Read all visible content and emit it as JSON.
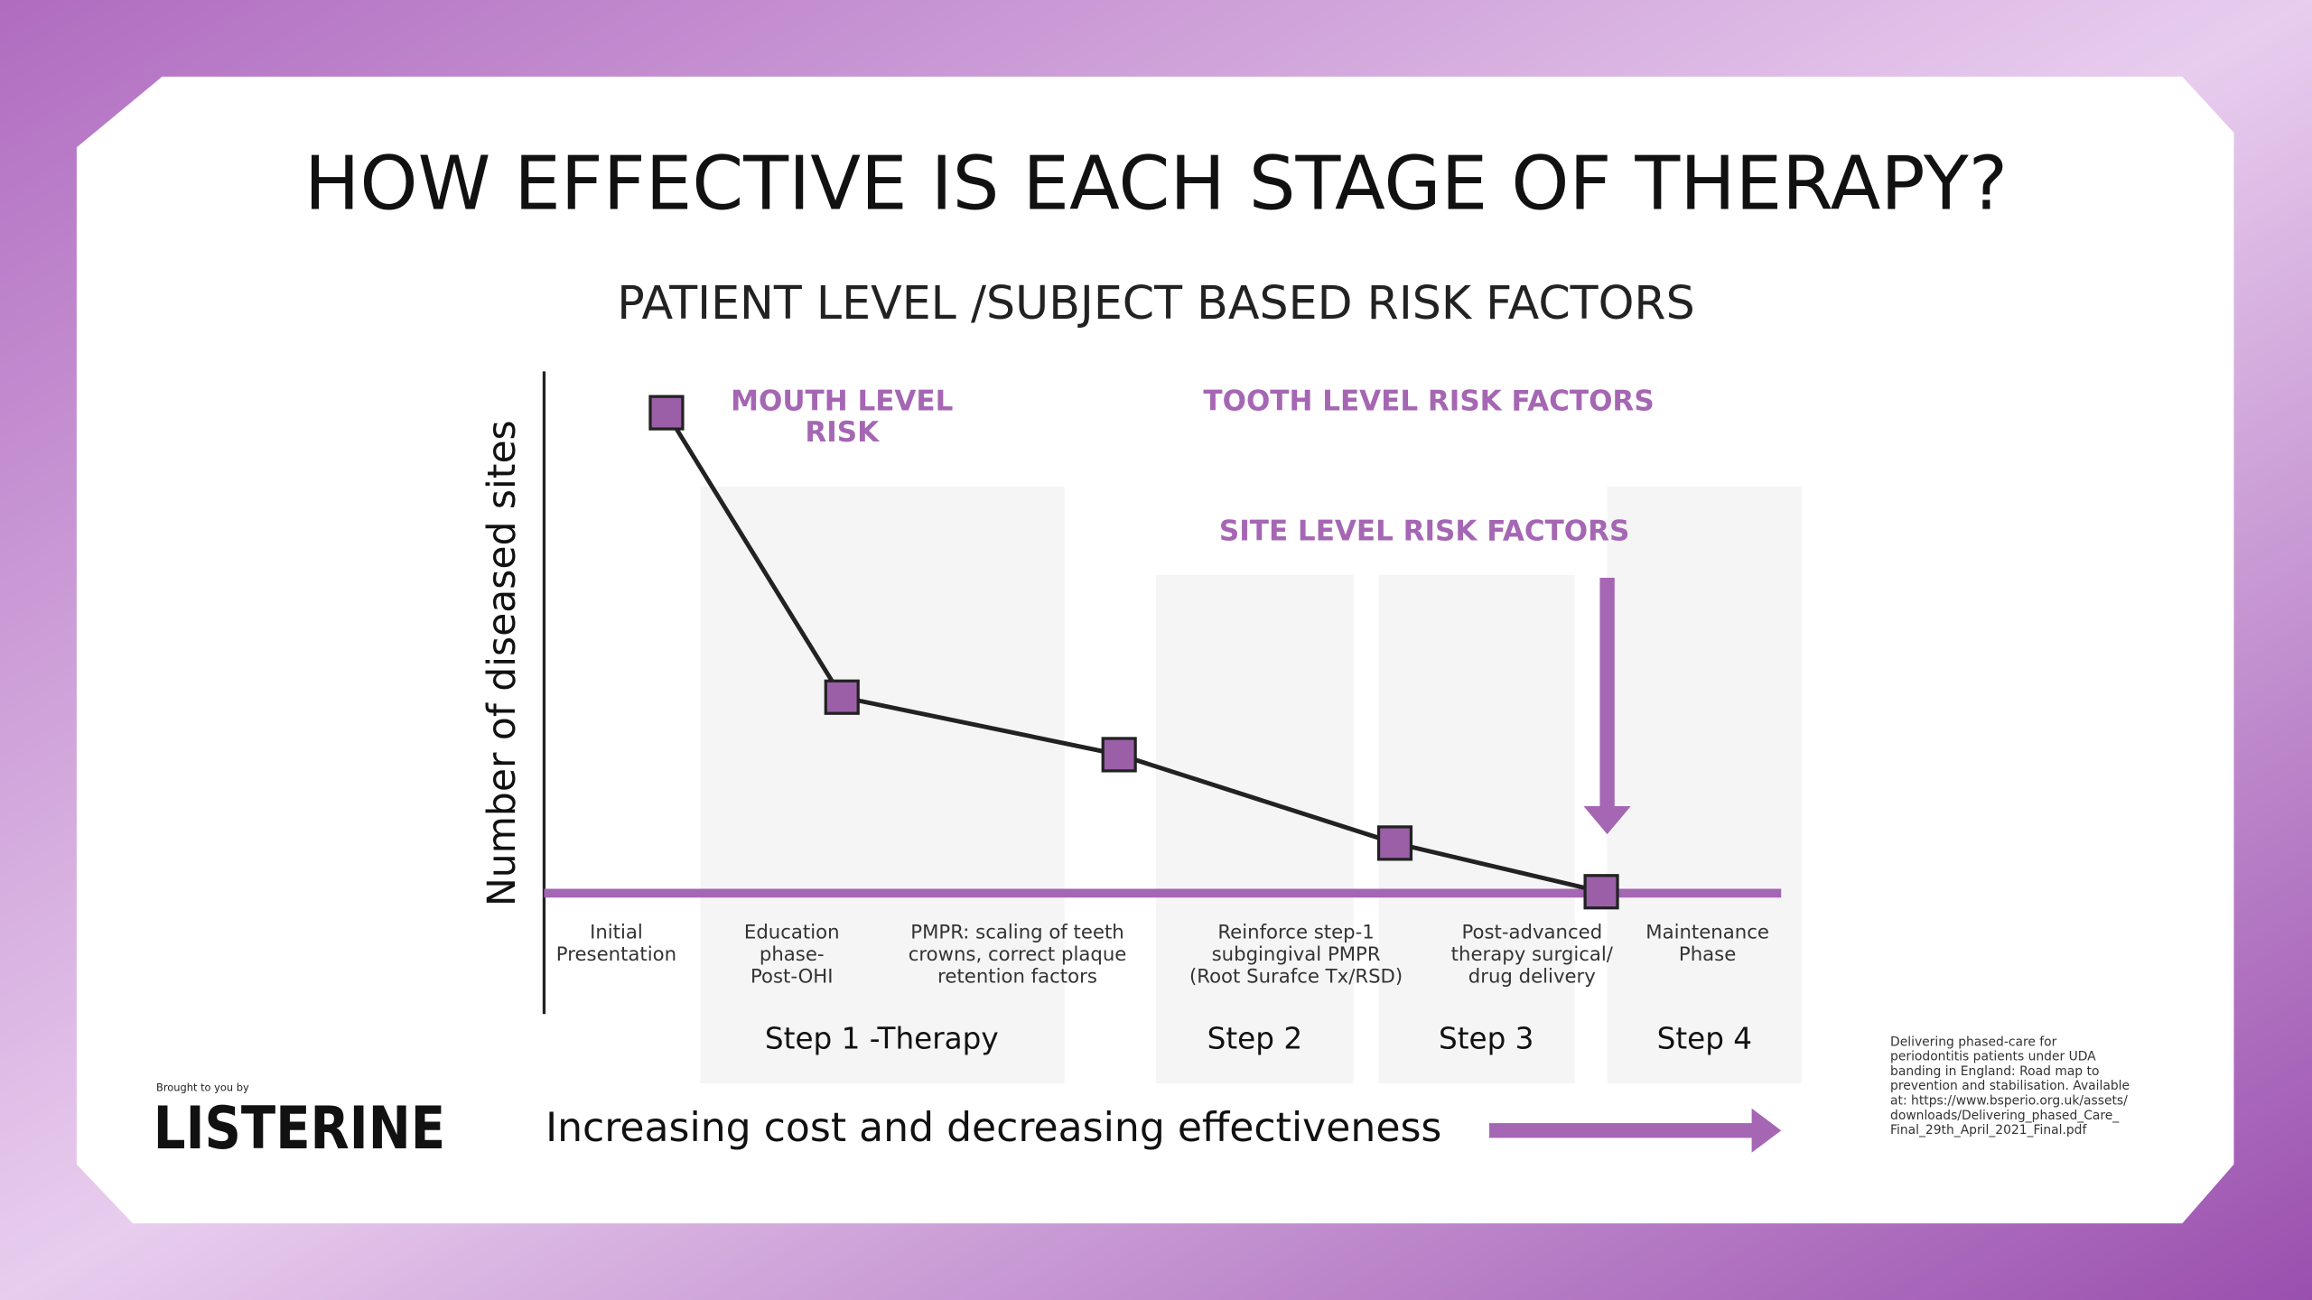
{
  "title": "HOW EFFECTIVE IS EACH STAGE OF THERAPY?",
  "subtitle": "PATIENT LEVEL /SUBJECT BASED RISK FACTORS",
  "y_axis_label": "Number of diseased sites",
  "annotations": {
    "mouth_level": [
      "MOUTH LEVEL",
      "RISK"
    ],
    "tooth_level": "TOOTH LEVEL RISK FACTORS",
    "site_level": "SITE LEVEL RISK FACTORS"
  },
  "stages": [
    [
      "Initial",
      "Presentation"
    ],
    [
      "Education",
      "phase-",
      "Post-OHI"
    ],
    [
      "PMPR: scaling of teeth",
      "crowns, correct plaque",
      "retention factors"
    ],
    [
      "Reinforce step-1",
      "subgingival PMPR",
      "(Root Surafce Tx/RSD)"
    ],
    [
      "Post-advanced",
      "therapy surgical/",
      "drug delivery"
    ],
    [
      "Maintenance",
      "Phase"
    ]
  ],
  "steps": [
    "Step 1 -Therapy",
    "Step 2",
    "Step 3",
    "Step 4"
  ],
  "footer": {
    "brought_by": "Brought to you by",
    "brand": "LISTERINE",
    "trend": "Increasing cost and decreasing effectiveness"
  },
  "citation": [
    "Delivering phased-care for",
    "periodontitis patients under UDA",
    "banding in England: Road map to",
    "prevention and stabilisation. Available",
    "at: https://www.bsperio.org.uk/assets/",
    "downloads/Delivering_phased_Care_",
    "Final_29th_April_2021_Final.pdf"
  ]
}
